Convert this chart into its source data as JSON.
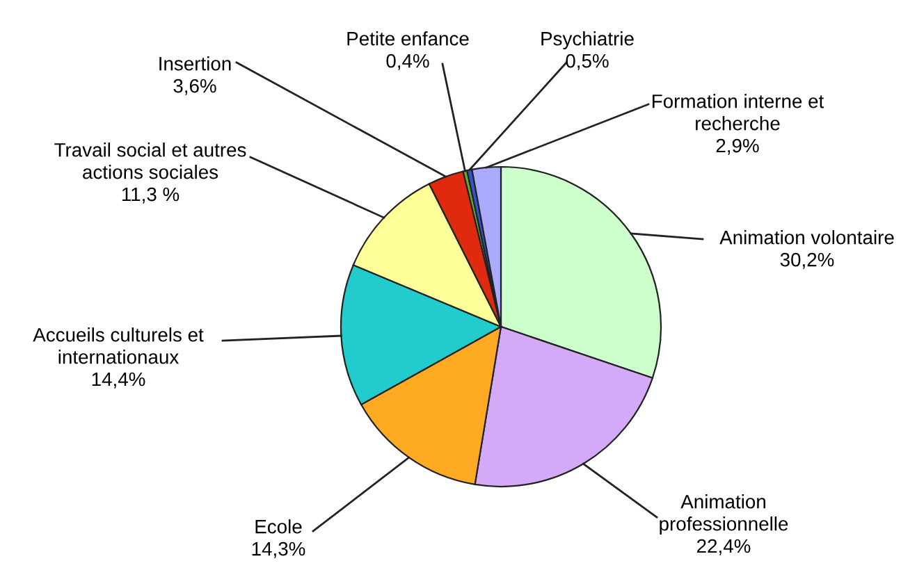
{
  "chart_data": {
    "type": "pie",
    "categories": [
      "Animation volontaire",
      "Animation\nprofessionnelle",
      "Ecole",
      "Accueils culturels et\ninternationaux",
      "Travail social et autres\nactions sociales",
      "Insertion",
      "Petite enfance",
      "Psychiatrie",
      "Formation interne et\nrecherche"
    ],
    "values": [
      30.2,
      22.4,
      14.3,
      14.4,
      11.3,
      3.6,
      0.4,
      0.5,
      2.9
    ],
    "value_labels": [
      "30,2%",
      "22,4%",
      "14,3%",
      "14,4%",
      "11,3 %",
      "3,6%",
      "0,4%",
      "0,5%",
      "2,9%"
    ],
    "colors": [
      "#ccffcc",
      "#d4aaf8",
      "#ffaa22",
      "#22cccc",
      "#ffff99",
      "#e02a10",
      "#66aa33",
      "#3355cc",
      "#aaaaff"
    ],
    "legend": false
  }
}
